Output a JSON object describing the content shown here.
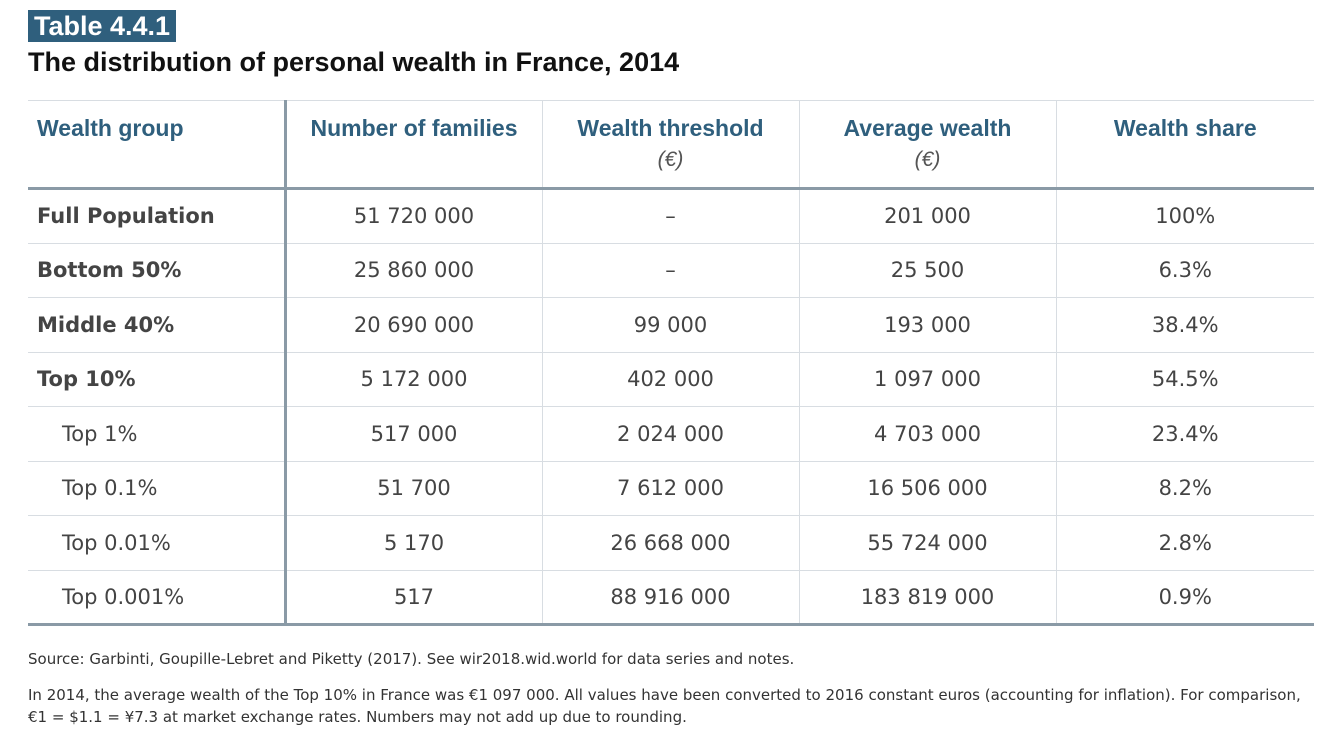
{
  "table_label": "Table 4.4.1",
  "title": "The distribution of personal wealth in France, 2014",
  "columns": {
    "group": "Wealth group",
    "families": "Number of families",
    "threshold": "Wealth threshold",
    "threshold_unit": "(€)",
    "average": "Average wealth",
    "average_unit": "(€)",
    "share": "Wealth share"
  },
  "rows": [
    {
      "group": "Full Population",
      "families": "51 720 000",
      "threshold": "–",
      "average": "201 000",
      "share": "100%"
    },
    {
      "group": "Bottom 50%",
      "families": "25 860 000",
      "threshold": "–",
      "average": "25 500",
      "share": "6.3%"
    },
    {
      "group": "Middle 40%",
      "families": "20 690 000",
      "threshold": "99 000",
      "average": "193 000",
      "share": "38.4%"
    },
    {
      "group": "Top 10%",
      "families": "5 172 000",
      "threshold": "402 000",
      "average": "1 097 000",
      "share": "54.5%"
    },
    {
      "group": "Top 1%",
      "families": "517 000",
      "threshold": "2 024 000",
      "average": "4 703 000",
      "share": "23.4%"
    },
    {
      "group": "Top 0.1%",
      "families": "51 700",
      "threshold": "7 612 000",
      "average": "16 506 000",
      "share": "8.2%"
    },
    {
      "group": "Top 0.01%",
      "families": "5 170",
      "threshold": "26 668 000",
      "average": "55 724 000",
      "share": "2.8%"
    },
    {
      "group": "Top 0.001%",
      "families": "517",
      "threshold": "88 916 000",
      "average": "183 819 000",
      "share": "0.9%"
    }
  ],
  "source": "Source: Garbinti, Goupille-Lebret and Piketty (2017). See wir2018.wid.world for data series and notes.",
  "note": "In 2014, the average wealth of the Top 10% in France was €1 097 000. All values have been converted to 2016 constant euros (accounting for inflation). For comparison, €1 = $1.1 = ¥7.3 at market exchange rates. Numbers may not add up due to rounding.",
  "colors": {
    "accent": "#2f5f7d",
    "rule": "#8a9aa6",
    "grid": "#d8dde2"
  }
}
